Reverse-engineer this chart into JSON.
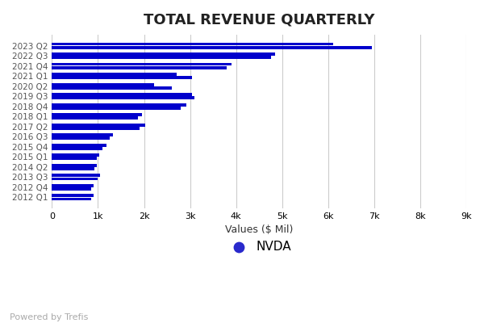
{
  "title": "TOTAL REVENUE QUARTERLY",
  "xlabel": "Values ($ Mil)",
  "labels": [
    "2012 Q1",
    "2012 Q4",
    "2013 Q3",
    "2014 Q2",
    "2015 Q1",
    "2015 Q4",
    "2016 Q3",
    "2017 Q2",
    "2018 Q1",
    "2018 Q4",
    "2019 Q3",
    "2020 Q2",
    "2021 Q1",
    "2021 Q4",
    "2022 Q3",
    "2023 Q2"
  ],
  "val1": [
    900,
    910,
    1050,
    970,
    1020,
    1180,
    1320,
    2020,
    1950,
    2920,
    3050,
    2220,
    2700,
    3900,
    4850,
    6100
  ],
  "val2": [
    850,
    860,
    990,
    920,
    970,
    1100,
    1250,
    1900,
    1870,
    2800,
    3100,
    2600,
    3050,
    3800,
    4750,
    6950
  ],
  "bar_color": "#0000cc",
  "legend_label": "NVDA",
  "legend_color": "#2929cc",
  "footer": "Powered by Trefis",
  "xlim": [
    0,
    9000
  ],
  "xtick_values": [
    0,
    1000,
    2000,
    3000,
    4000,
    5000,
    6000,
    7000,
    8000,
    9000
  ],
  "xtick_labels": [
    "0",
    "1k",
    "2k",
    "3k",
    "4k",
    "5k",
    "6k",
    "7k",
    "8k",
    "9k"
  ],
  "background_color": "#ffffff",
  "grid_color": "#cccccc"
}
